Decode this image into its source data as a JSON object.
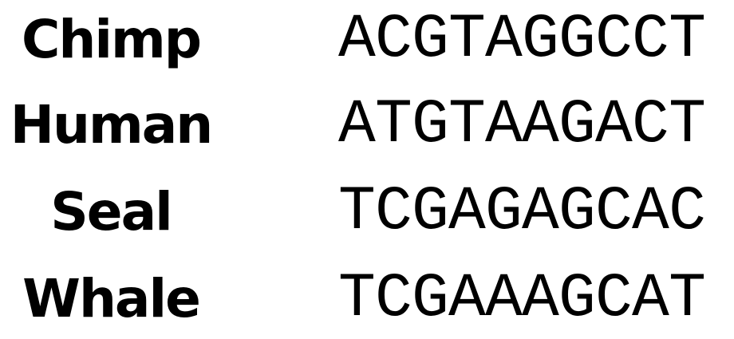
{
  "rows": [
    {
      "name": "Chimp",
      "sequence": "ACGTAGGCCT"
    },
    {
      "name": "Human",
      "sequence": "ATGTAAGACT"
    },
    {
      "name": "Seal",
      "sequence": "TCGAGAGCAC"
    },
    {
      "name": "Whale",
      "sequence": "TCGAAAGCAT"
    }
  ]
}
